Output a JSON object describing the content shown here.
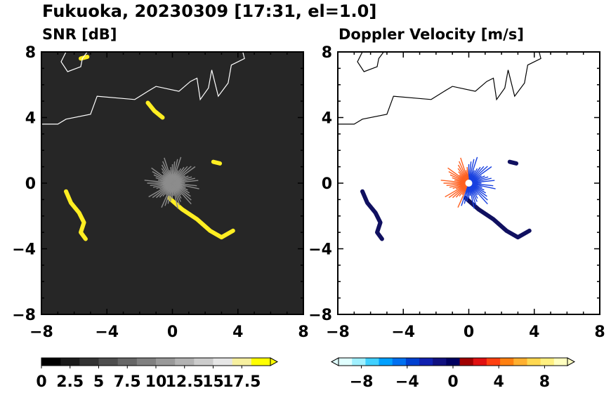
{
  "title": "Fukuoka, 20230309 [17:31, el=1.0]",
  "chart_data": [
    {
      "type": "heatmap",
      "title": "SNR [dB]",
      "xlim": [
        -8,
        8
      ],
      "ylim": [
        -8,
        8
      ],
      "xticks": [
        "−8",
        "−4",
        "0",
        "4",
        "8"
      ],
      "yticks": [
        "8",
        "4",
        "0",
        "−4",
        "−8"
      ],
      "background": "#262626",
      "colorbar": {
        "ticks": [
          "0",
          "2.5",
          "5",
          "7.5",
          "10",
          "12.5",
          "15",
          "17.5"
        ],
        "range": [
          0,
          20
        ],
        "extend": "max",
        "colors": [
          "#000000",
          "#1a1a1a",
          "#333333",
          "#4d4d4d",
          "#666666",
          "#808080",
          "#999999",
          "#b3b3b3",
          "#cccccc",
          "#e6e6e6",
          "#f7f0a0",
          "#ffff00"
        ]
      },
      "echo_color": "#ffee22",
      "echo_bands": [
        [
          [
            -6.5,
            -0.5
          ],
          [
            -6.2,
            -1.2
          ],
          [
            -5.7,
            -1.8
          ],
          [
            -5.4,
            -2.4
          ],
          [
            -5.6,
            -3.0
          ],
          [
            -5.3,
            -3.4
          ]
        ],
        [
          [
            -0.2,
            -0.9
          ],
          [
            0.6,
            -1.6
          ],
          [
            1.5,
            -2.2
          ],
          [
            2.3,
            -2.9
          ],
          [
            3.0,
            -3.3
          ],
          [
            3.7,
            -2.9
          ]
        ],
        [
          [
            -1.5,
            4.9
          ],
          [
            -1.1,
            4.4
          ],
          [
            -0.6,
            4.0
          ]
        ],
        [
          [
            2.5,
            1.3
          ],
          [
            2.9,
            1.2
          ]
        ],
        [
          [
            -5.6,
            7.6
          ],
          [
            -5.2,
            7.7
          ]
        ]
      ]
    },
    {
      "type": "heatmap",
      "title": "Doppler Velocity [m/s]",
      "xlim": [
        -8,
        8
      ],
      "ylim": [
        -8,
        8
      ],
      "xticks": [
        "−8",
        "−4",
        "0",
        "4",
        "8"
      ],
      "yticks": [
        "8",
        "4",
        "0",
        "−4",
        "−8"
      ],
      "background": "#ffffff",
      "colorbar": {
        "ticks": [
          "−8",
          "−4",
          "0",
          "4",
          "8"
        ],
        "range": [
          -10,
          10
        ],
        "extend": "both",
        "colors": [
          "#e0ffff",
          "#a0f0ff",
          "#40d0ff",
          "#00a0ff",
          "#0070f0",
          "#0040d0",
          "#1020b0",
          "#101080",
          "#000060",
          "#a00000",
          "#e01010",
          "#ff4010",
          "#ff8010",
          "#ffb030",
          "#ffd850",
          "#fff080",
          "#ffffc0"
        ]
      },
      "echo_color": "#101060",
      "echo_bands": [
        [
          [
            -6.5,
            -0.5
          ],
          [
            -6.2,
            -1.2
          ],
          [
            -5.7,
            -1.8
          ],
          [
            -5.4,
            -2.4
          ],
          [
            -5.6,
            -3.0
          ],
          [
            -5.3,
            -3.4
          ]
        ],
        [
          [
            -0.2,
            -0.9
          ],
          [
            0.6,
            -1.6
          ],
          [
            1.5,
            -2.2
          ],
          [
            2.3,
            -2.9
          ],
          [
            3.0,
            -3.3
          ],
          [
            3.7,
            -2.9
          ]
        ],
        [
          [
            2.5,
            1.3
          ],
          [
            2.9,
            1.2
          ]
        ]
      ]
    }
  ],
  "coastline": [
    [
      [
        -8,
        3.6
      ],
      [
        -7.0,
        3.6
      ],
      [
        -6.5,
        3.9
      ],
      [
        -5.0,
        4.2
      ],
      [
        -4.6,
        5.3
      ],
      [
        -2.3,
        5.1
      ],
      [
        -1.5,
        5.6
      ],
      [
        -1.0,
        5.9
      ],
      [
        0.4,
        5.6
      ],
      [
        1.1,
        6.2
      ],
      [
        1.5,
        6.4
      ],
      [
        1.7,
        5.1
      ],
      [
        2.2,
        5.8
      ],
      [
        2.4,
        6.9
      ],
      [
        2.8,
        5.3
      ],
      [
        3.4,
        6.1
      ],
      [
        3.6,
        7.2
      ],
      [
        4.4,
        7.6
      ],
      [
        4.3,
        8
      ]
    ],
    [
      [
        -6.5,
        8
      ],
      [
        -6.8,
        7.4
      ],
      [
        -6.4,
        6.8
      ],
      [
        -5.6,
        7.1
      ],
      [
        -5.5,
        7.6
      ],
      [
        -5.2,
        8
      ]
    ]
  ]
}
